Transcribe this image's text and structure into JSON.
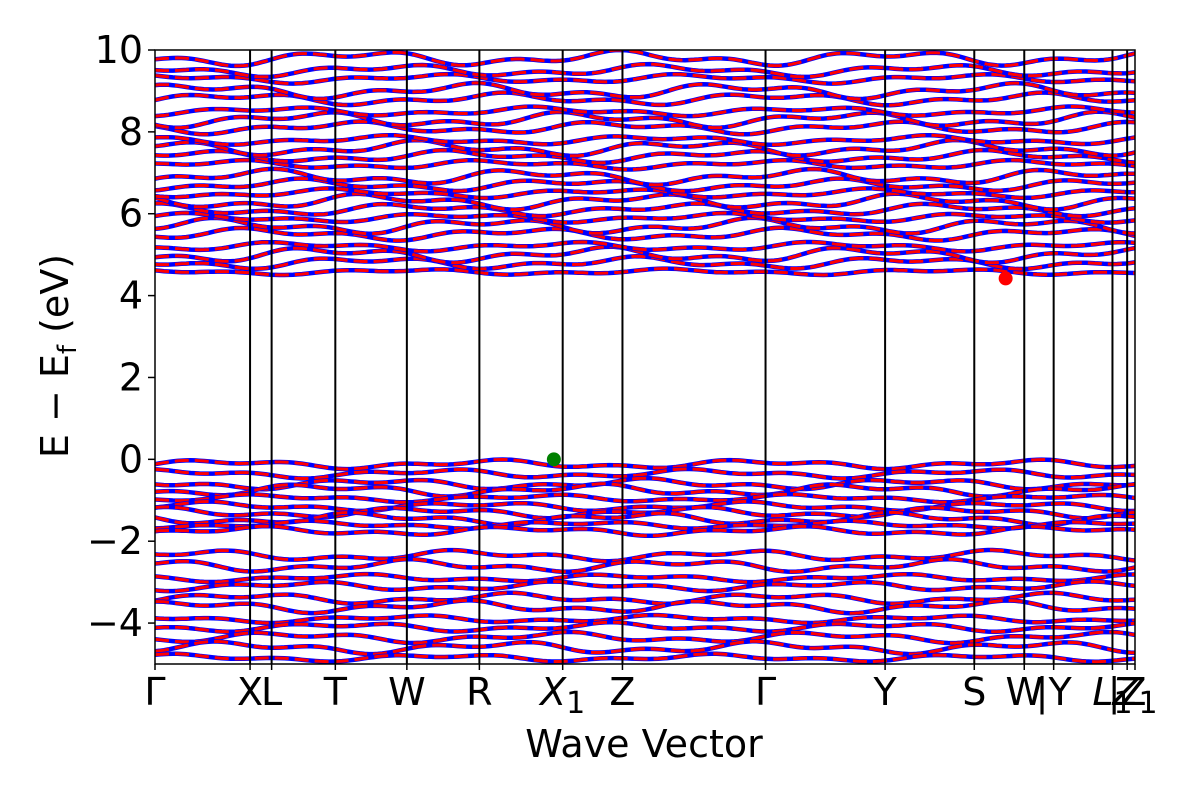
{
  "chart_data": {
    "type": "line",
    "title": "",
    "xlabel": "Wave Vector",
    "ylabel": "E − E",
    "ylabel_sub": "f",
    "ylabel_unit": " (eV)",
    "ylim": [
      -5,
      10
    ],
    "yticks": [
      -4,
      -2,
      0,
      2,
      4,
      6,
      8,
      10
    ],
    "ytick_labels": [
      "−4",
      "−2",
      "0",
      "2",
      "4",
      "6",
      "8",
      "10"
    ],
    "grid": false,
    "kpath": [
      {
        "label": "Γ",
        "k": 0.0
      },
      {
        "label": "X",
        "k": 0.097
      },
      {
        "label": "L",
        "k": 0.119
      },
      {
        "label": "T",
        "k": 0.184
      },
      {
        "label": "W",
        "k": 0.257
      },
      {
        "label": "R",
        "k": 0.331
      },
      {
        "label": "X",
        "sub": "1",
        "k": 0.416
      },
      {
        "label": "Z",
        "k": 0.477
      },
      {
        "label": "Γ",
        "k": 0.623
      },
      {
        "label": "Y",
        "k": 0.745
      },
      {
        "label": "S",
        "k": 0.836
      },
      {
        "label": "W",
        "k": 0.887
      },
      {
        "label": "|Y",
        "k": 0.917
      },
      {
        "label": "L",
        "sub": "1",
        "k": 0.977
      },
      {
        "label": "|Z",
        "k": 0.992
      },
      {
        "label": "Z",
        "sub": "1",
        "k": 1.0
      }
    ],
    "series": [
      {
        "style": "spin-up",
        "color": "#ff0000"
      },
      {
        "style": "spin-down",
        "color": "#0000ff"
      }
    ],
    "markers": [
      {
        "role": "valence-band-maximum",
        "k": 0.407,
        "energy": 0.0,
        "color": "#008000"
      },
      {
        "role": "conduction-band-minimum",
        "k": 0.868,
        "energy": 4.42,
        "color": "#ff0000"
      }
    ],
    "bands": {
      "valence": [
        0.0,
        -0.35,
        -0.6,
        -0.75,
        -0.95,
        -1.15,
        -1.3,
        -1.45,
        -1.6,
        -1.75,
        -2.35,
        -2.6,
        -2.9,
        -3.1,
        -3.4,
        -3.6,
        -3.9,
        -4.1,
        -4.35,
        -4.6,
        -4.85
      ],
      "conduction": [
        4.5,
        4.8,
        5.0,
        5.2,
        5.5,
        5.7,
        5.9,
        6.1,
        6.3,
        6.5,
        6.7,
        6.9,
        7.2,
        7.4,
        7.6,
        7.8,
        8.1,
        8.3,
        8.5,
        8.8,
        9.0,
        9.3,
        9.5,
        9.8
      ]
    }
  }
}
